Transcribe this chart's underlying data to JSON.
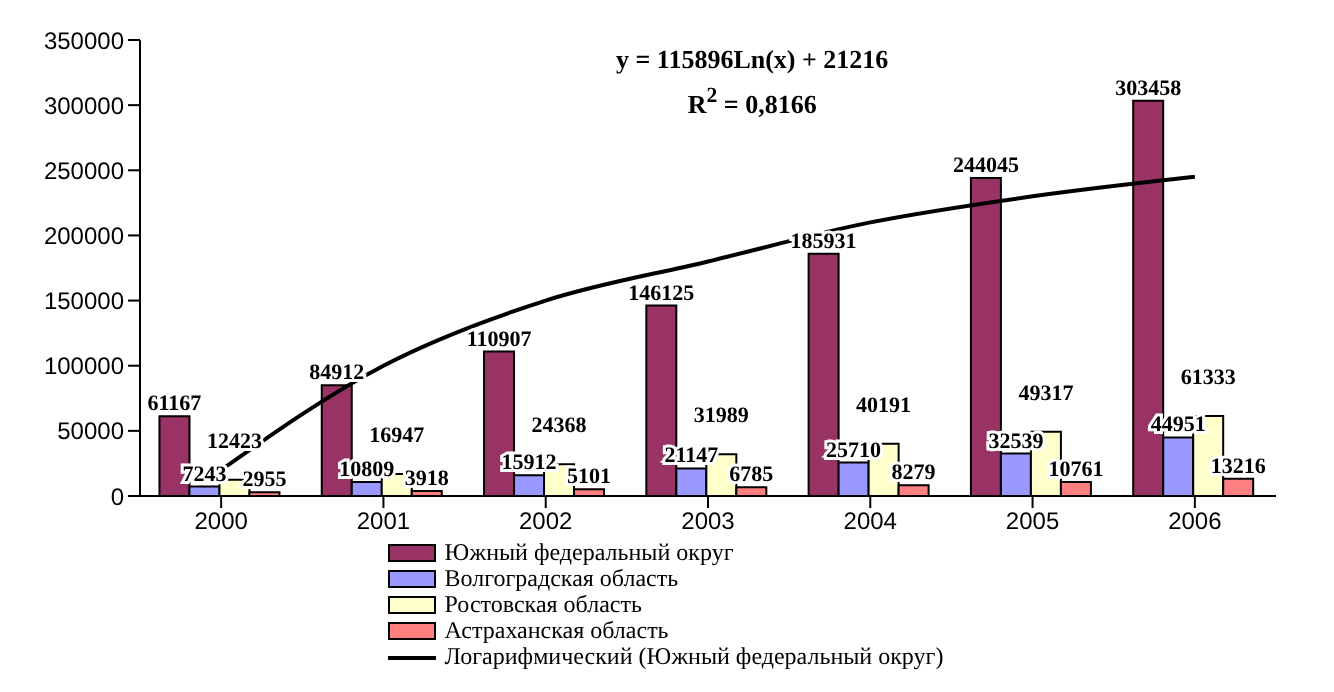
{
  "chart_data": {
    "type": "bar",
    "categories": [
      "2000",
      "2001",
      "2002",
      "2003",
      "2004",
      "2005",
      "2006"
    ],
    "series": [
      {
        "name": "Южный федеральный округ",
        "color": "#993366",
        "values": [
          61167,
          84912,
          110907,
          146125,
          185931,
          244045,
          303458
        ],
        "value_labels": [
          "61167",
          "84912",
          "110907",
          "146125",
          "185931",
          "244045",
          "303458"
        ]
      },
      {
        "name": "Волгоградская область",
        "color": "#9999ff",
        "values": [
          7243,
          10809,
          15912,
          21147,
          25710,
          32539,
          44951
        ],
        "value_labels": [
          "7243",
          "10809",
          "15912",
          "21147",
          "25710",
          "32539",
          "44951"
        ]
      },
      {
        "name": "Ростовская область",
        "color": "#ffffcc",
        "values": [
          12423,
          16947,
          24368,
          31989,
          40191,
          49317,
          61333
        ],
        "value_labels": [
          "12423",
          "16947",
          "24368",
          "31989",
          "40191",
          "49317",
          "61333"
        ]
      },
      {
        "name": "Астраханская область",
        "color": "#ff8080",
        "values": [
          2955,
          3918,
          5101,
          6785,
          8279,
          10761,
          13216
        ],
        "value_labels": [
          "2955",
          "3918",
          "5101",
          "6785",
          "8279",
          "10761",
          "13216"
        ]
      },
      {
        "name": "Логарифмический (Южный федеральный округ)",
        "type": "line",
        "color": "#000000",
        "values": [
          20000,
          100000,
          150000,
          180000,
          210000,
          230000,
          245000
        ]
      }
    ],
    "ylim": [
      0,
      350000
    ],
    "yticks": [
      0,
      50000,
      100000,
      150000,
      200000,
      250000,
      300000,
      350000
    ],
    "legend": "bottom",
    "marker": "none",
    "annotations": [
      "y = 115896Ln(x) + 21216",
      "R$^{2}$ = 0,8166"
    ]
  }
}
